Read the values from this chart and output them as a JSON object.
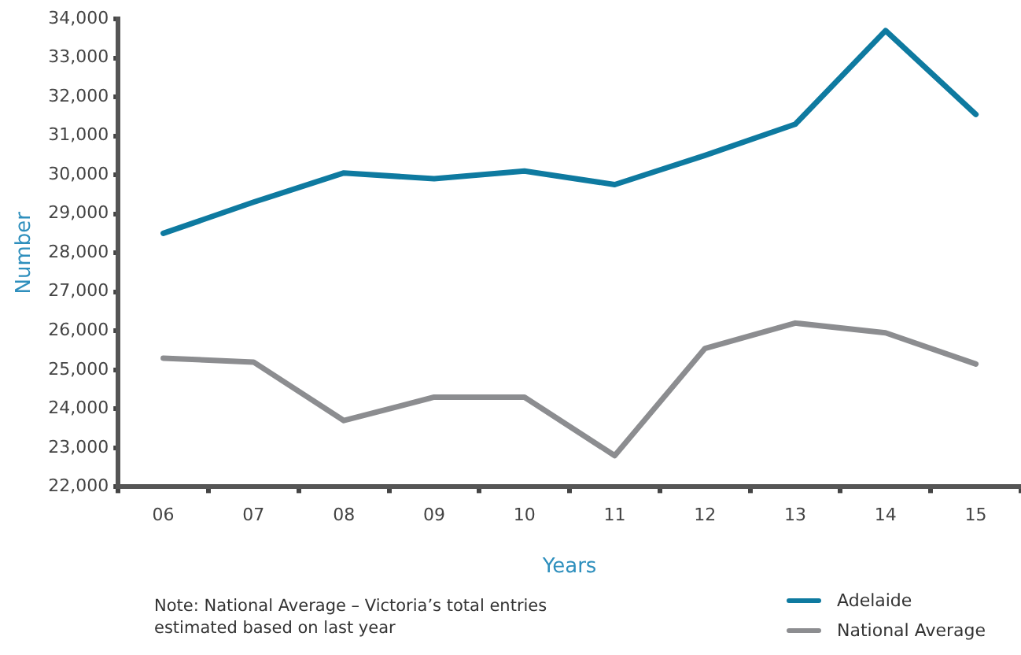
{
  "chart_data": {
    "type": "line",
    "xlabel": "Years",
    "ylabel": "Number",
    "categories": [
      "06",
      "07",
      "08",
      "09",
      "10",
      "11",
      "12",
      "13",
      "14",
      "15"
    ],
    "series": [
      {
        "name": "Adelaide",
        "color": "#0e7aa0",
        "values": [
          28500,
          29300,
          30050,
          29900,
          30100,
          29750,
          30500,
          31300,
          33700,
          31550
        ]
      },
      {
        "name": "National Average",
        "color": "#8c8d90",
        "values": [
          25300,
          25200,
          23700,
          24300,
          24300,
          22800,
          25550,
          26200,
          25950,
          25150
        ]
      }
    ],
    "ylim": [
      22000,
      34000
    ],
    "yticks": [
      {
        "value": 22000,
        "label": "22,000"
      },
      {
        "value": 23000,
        "label": "23,000"
      },
      {
        "value": 24000,
        "label": "24,000"
      },
      {
        "value": 25000,
        "label": "25,000"
      },
      {
        "value": 26000,
        "label": "26,000"
      },
      {
        "value": 27000,
        "label": "27,000"
      },
      {
        "value": 28000,
        "label": "28,000"
      },
      {
        "value": 29000,
        "label": "29,000"
      },
      {
        "value": 30000,
        "label": "30,000"
      },
      {
        "value": 31000,
        "label": "31,000"
      },
      {
        "value": 32000,
        "label": "32,000"
      },
      {
        "value": 33000,
        "label": "33,000"
      },
      {
        "value": 34000,
        "label": "34,000"
      }
    ],
    "grid": false,
    "legend": "bottom right",
    "marker": "none",
    "line_style": "solid",
    "annotations": [
      "Note: National Average – Victoria’s total entries estimated based on last year"
    ]
  }
}
